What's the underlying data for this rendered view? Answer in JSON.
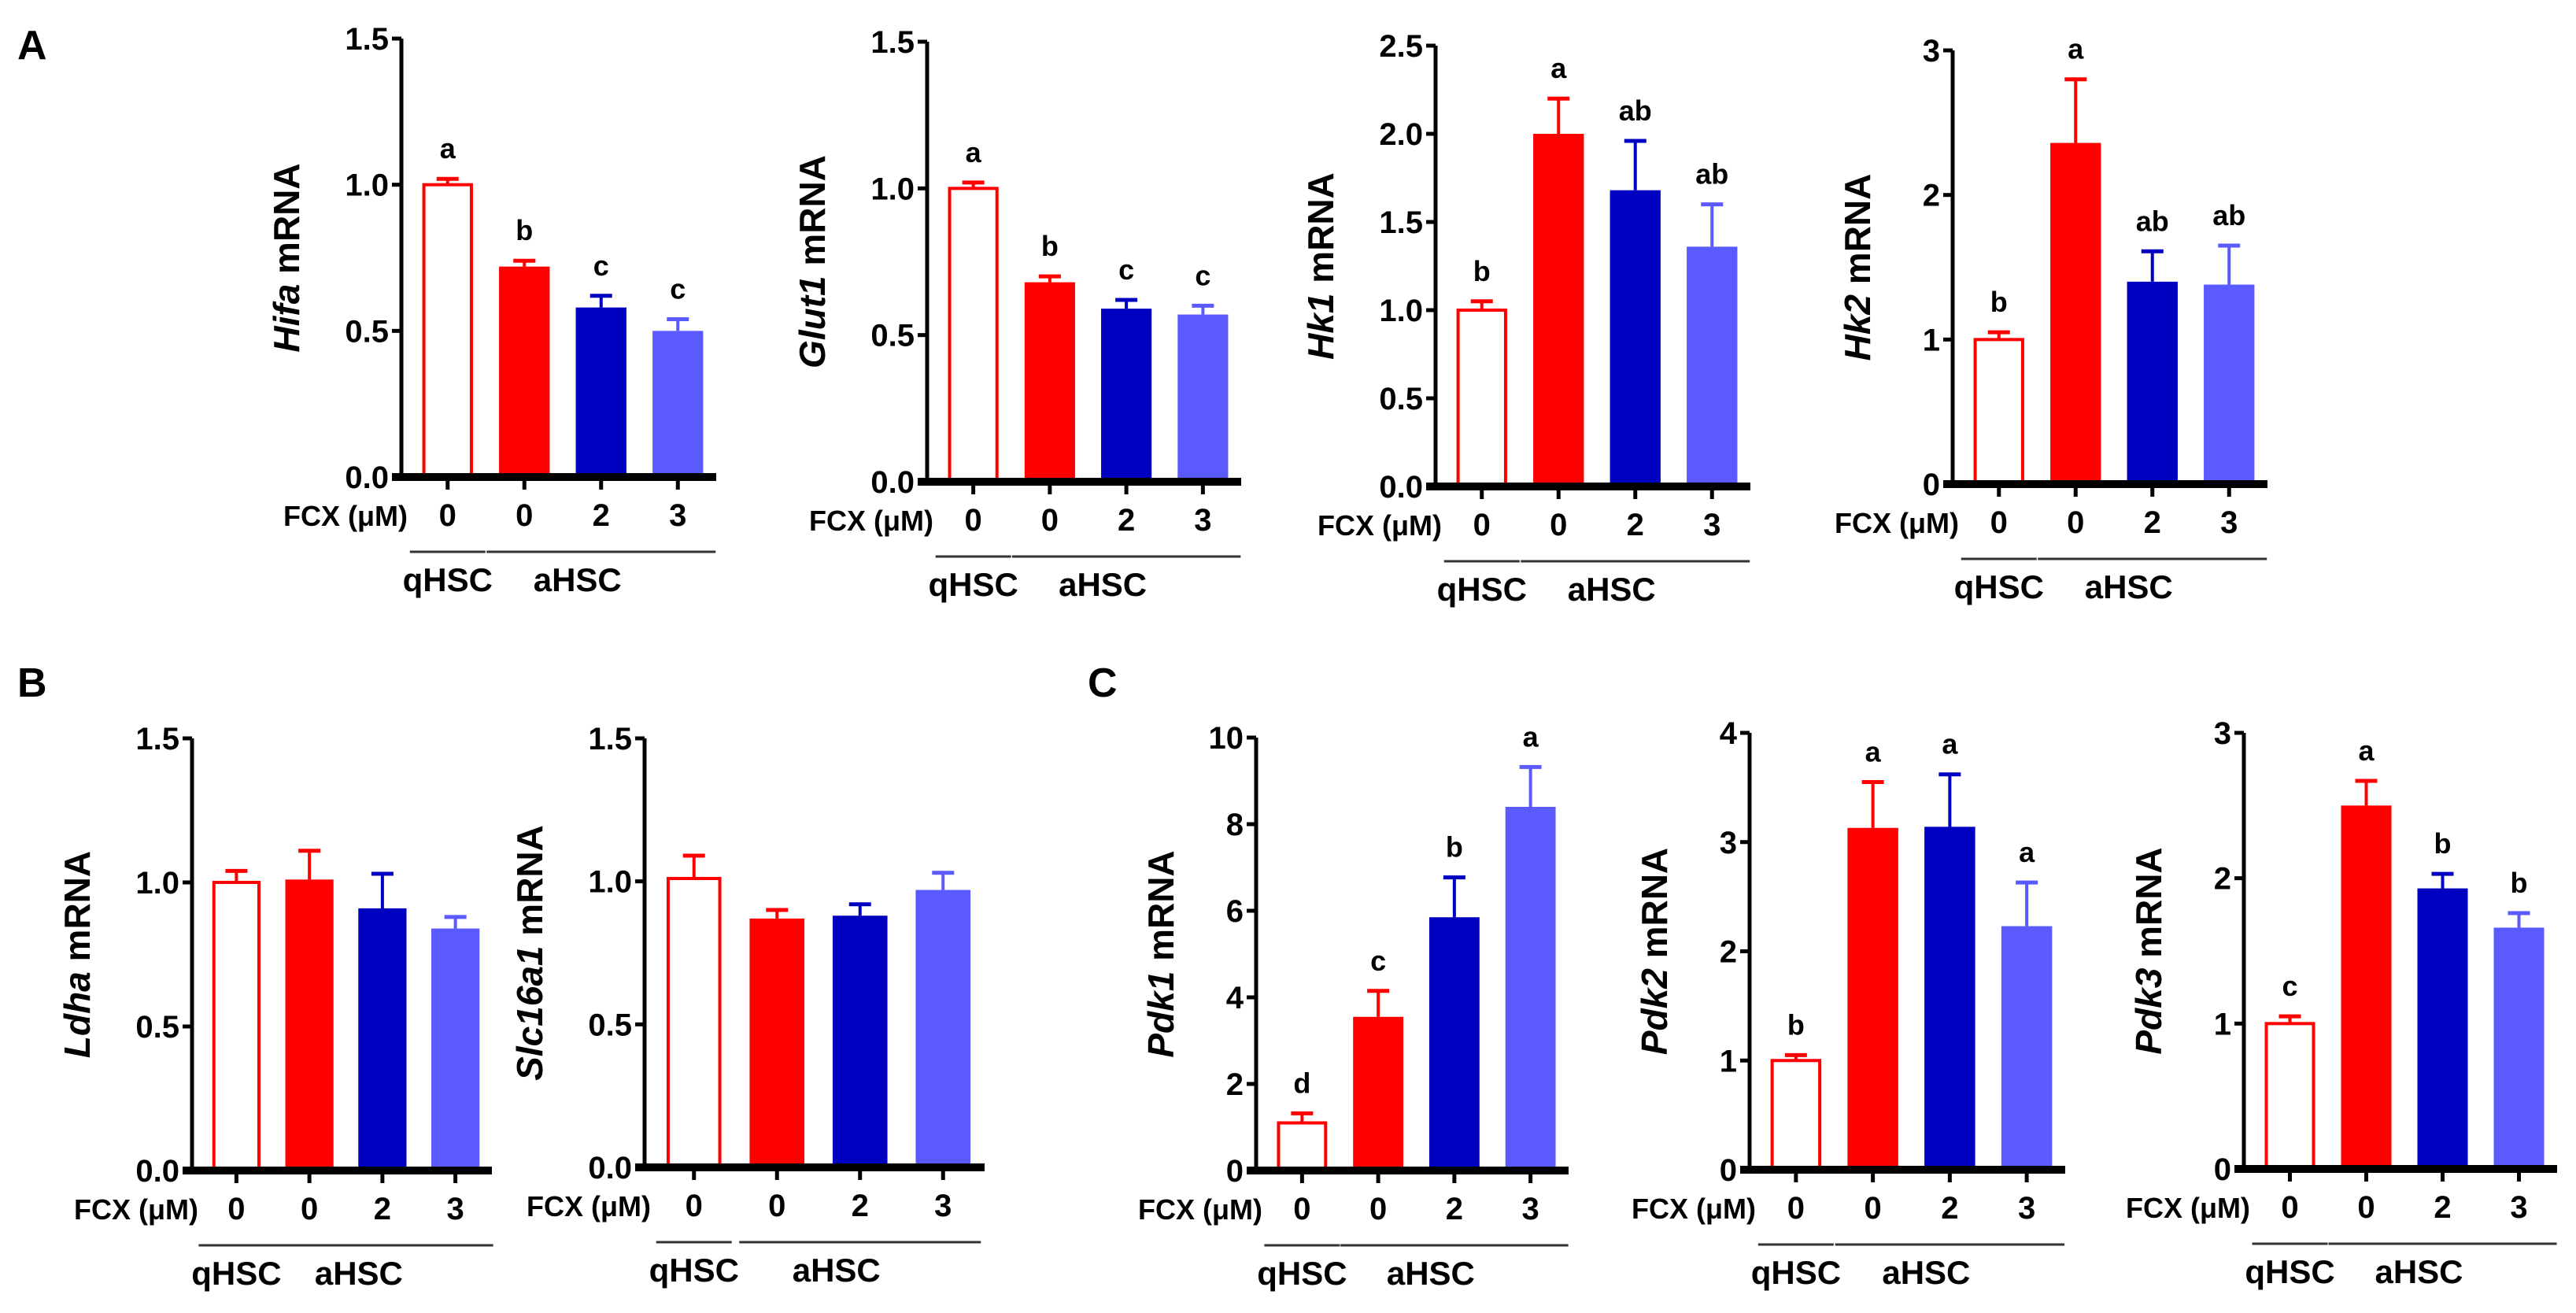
{
  "panels": [
    "A",
    "B",
    "C"
  ],
  "colors": {
    "qHSC_outline": "#ff0000",
    "aHSC_0": "#ff0000",
    "aHSC_2": "#0000c0",
    "aHSC_3": "#5a5aff",
    "axis": "#000000"
  },
  "common": {
    "x_name": "FCX (μM)",
    "x_categories": [
      "0",
      "0",
      "2",
      "3"
    ],
    "groups": [
      "qHSC",
      "aHSC"
    ],
    "ylabel_suffix": " mRNA"
  },
  "chart_data": [
    {
      "type": "bar",
      "panel": "A",
      "gene": "Hifa",
      "ylim": [
        0,
        1.5
      ],
      "yticks": [
        "0.0",
        "0.5",
        "1.0",
        "1.5"
      ],
      "ytick_values": [
        0,
        0.5,
        1.0,
        1.5
      ],
      "values": [
        1.0,
        0.72,
        0.58,
        0.5
      ],
      "errors": [
        0.02,
        0.02,
        0.04,
        0.04
      ],
      "letters": [
        "a",
        "b",
        "c",
        "c"
      ]
    },
    {
      "type": "bar",
      "panel": "A",
      "gene": "Glut1",
      "ylim": [
        0,
        1.5
      ],
      "yticks": [
        "0.0",
        "0.5",
        "1.0",
        "1.5"
      ],
      "ytick_values": [
        0,
        0.5,
        1.0,
        1.5
      ],
      "values": [
        1.0,
        0.68,
        0.59,
        0.57
      ],
      "errors": [
        0.02,
        0.02,
        0.03,
        0.03
      ],
      "letters": [
        "a",
        "b",
        "c",
        "c"
      ]
    },
    {
      "type": "bar",
      "panel": "A",
      "gene": "Hk1",
      "ylim": [
        0,
        2.5
      ],
      "yticks": [
        "0.0",
        "0.5",
        "1.0",
        "1.5",
        "2.0",
        "2.5"
      ],
      "ytick_values": [
        0,
        0.5,
        1.0,
        1.5,
        2.0,
        2.5
      ],
      "values": [
        1.0,
        2.0,
        1.68,
        1.36
      ],
      "errors": [
        0.05,
        0.2,
        0.28,
        0.24
      ],
      "letters": [
        "b",
        "a",
        "ab",
        "ab"
      ]
    },
    {
      "type": "bar",
      "panel": "A",
      "gene": "Hk2",
      "ylim": [
        0,
        3
      ],
      "yticks": [
        "0",
        "1",
        "2",
        "3"
      ],
      "ytick_values": [
        0,
        1,
        2,
        3
      ],
      "values": [
        1.0,
        2.36,
        1.4,
        1.38
      ],
      "errors": [
        0.05,
        0.44,
        0.21,
        0.27
      ],
      "letters": [
        "b",
        "a",
        "ab",
        "ab"
      ]
    },
    {
      "type": "bar",
      "panel": "B",
      "gene": "Ldha",
      "ylim": [
        0,
        1.5
      ],
      "yticks": [
        "0.0",
        "0.5",
        "1.0",
        "1.5"
      ],
      "ytick_values": [
        0,
        0.5,
        1.0,
        1.5
      ],
      "values": [
        1.0,
        1.01,
        0.91,
        0.84
      ],
      "errors": [
        0.04,
        0.1,
        0.12,
        0.04
      ],
      "letters": [
        "",
        "",
        "",
        ""
      ]
    },
    {
      "type": "bar",
      "panel": "B",
      "gene": "Slc16a1",
      "ylim": [
        0,
        1.5
      ],
      "yticks": [
        "0.0",
        "0.5",
        "1.0",
        "1.5"
      ],
      "ytick_values": [
        0,
        0.5,
        1.0,
        1.5
      ],
      "values": [
        1.01,
        0.87,
        0.88,
        0.97
      ],
      "errors": [
        0.08,
        0.03,
        0.04,
        0.06
      ],
      "letters": [
        "",
        "",
        "",
        ""
      ]
    },
    {
      "type": "bar",
      "panel": "C",
      "gene": "Pdk1",
      "ylim": [
        0,
        10
      ],
      "yticks": [
        "0",
        "2",
        "4",
        "6",
        "8",
        "10"
      ],
      "ytick_values": [
        0,
        2,
        4,
        6,
        8,
        10
      ],
      "values": [
        1.1,
        3.55,
        5.85,
        8.4
      ],
      "errors": [
        0.22,
        0.6,
        0.92,
        0.92
      ],
      "letters": [
        "d",
        "c",
        "b",
        "a"
      ]
    },
    {
      "type": "bar",
      "panel": "C",
      "gene": "Pdk2",
      "ylim": [
        0,
        4
      ],
      "yticks": [
        "0",
        "1",
        "2",
        "3",
        "4"
      ],
      "ytick_values": [
        0,
        1,
        2,
        3,
        4
      ],
      "values": [
        1.0,
        3.13,
        3.14,
        2.23
      ],
      "errors": [
        0.05,
        0.42,
        0.48,
        0.4
      ],
      "letters": [
        "b",
        "a",
        "a",
        "a"
      ]
    },
    {
      "type": "bar",
      "panel": "C",
      "gene": "Pdk3",
      "ylim": [
        0,
        3
      ],
      "yticks": [
        "0",
        "1",
        "2",
        "3"
      ],
      "ytick_values": [
        0,
        1,
        2,
        3
      ],
      "values": [
        1.0,
        2.5,
        1.93,
        1.66
      ],
      "errors": [
        0.05,
        0.17,
        0.1,
        0.1
      ],
      "letters": [
        "c",
        "a",
        "b",
        "b"
      ]
    }
  ]
}
